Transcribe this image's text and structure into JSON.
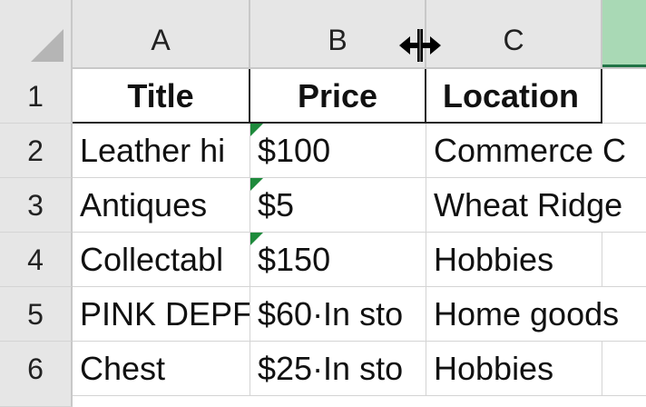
{
  "spreadsheet": {
    "corner_select_all": "",
    "columns": [
      "A",
      "B",
      "C",
      ""
    ],
    "rows": [
      "1",
      "2",
      "3",
      "4",
      "5",
      "6"
    ],
    "header": {
      "title": "Title",
      "price": "Price",
      "location": "Location"
    },
    "data": [
      {
        "title": "Leather hi",
        "price": "$100",
        "location": "Commerce C",
        "price_flag": true
      },
      {
        "title": "Antiques ",
        "price": "$5",
        "location": "Wheat Ridge",
        "price_flag": true
      },
      {
        "title": "Collectabl",
        "price": "$150",
        "location": "Hobbies",
        "price_flag": true
      },
      {
        "title": "PINK DEPF",
        "price": "$60·In sto",
        "location": "Home goods",
        "price_flag": false
      },
      {
        "title": "Chest",
        "price": "$25·In sto",
        "location": "Hobbies",
        "price_flag": false
      }
    ],
    "colors": {
      "selected_column": "#a9d9b5",
      "accent": "#217346",
      "error_indicator": "#1e8a3c",
      "header_bg": "#e6e6e6"
    }
  },
  "cursor": {
    "icon": "column-resize-cursor-icon"
  }
}
